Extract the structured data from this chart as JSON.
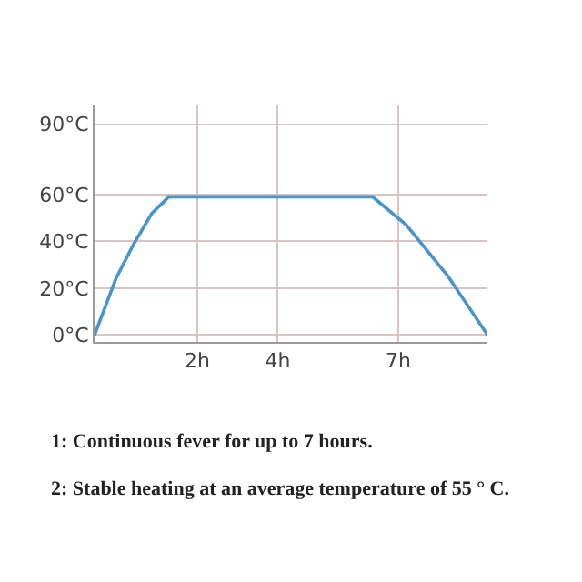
{
  "chart_data": {
    "type": "line",
    "x": [
      -0.56,
      -0.03,
      0.42,
      0.87,
      1.29,
      6.36,
      7.2,
      8.24,
      9.22
    ],
    "series": [
      {
        "color": "#4a94cc",
        "values": [
          0,
          24,
          39,
          52,
          59,
          59,
          47,
          25,
          0
        ]
      }
    ],
    "xlim": [
      -0.56,
      9.22
    ],
    "xticks": [
      {
        "value": 2,
        "label": "2h"
      },
      {
        "value": 4,
        "label": "4h"
      },
      {
        "value": 7,
        "label": "7h"
      }
    ],
    "ylim": [
      -3,
      98
    ],
    "yticks": [
      {
        "value": 0,
        "label": "0°C"
      },
      {
        "value": 20,
        "label": "20°C"
      },
      {
        "value": 40,
        "label": "40°C"
      },
      {
        "value": 60,
        "label": "60°C"
      },
      {
        "value": 90,
        "label": "90°C"
      }
    ],
    "grid": true,
    "marker": "none",
    "line_style": "solid",
    "annotations": [
      "1: Continuous fever for up to 7 hours.",
      "2: Stable heating at an average temperature of 55 ° C."
    ]
  }
}
